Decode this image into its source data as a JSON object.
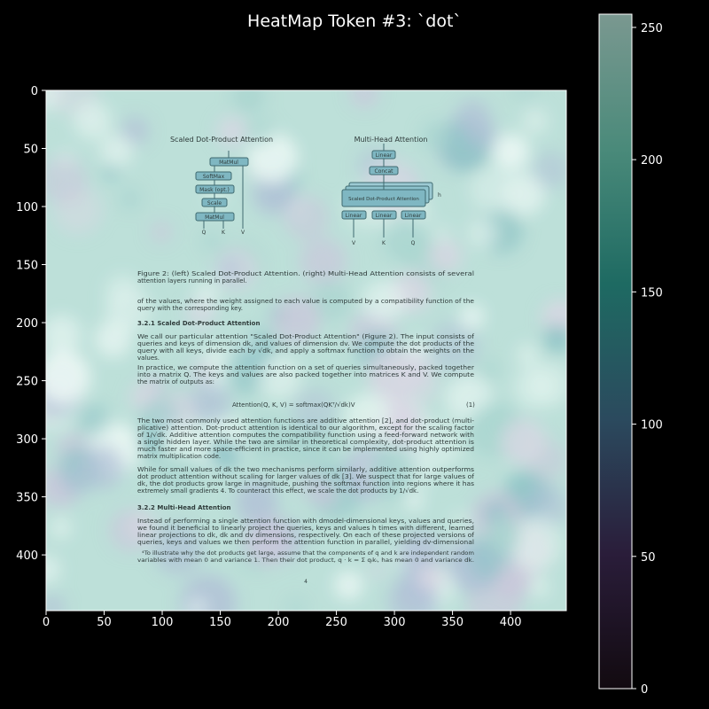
{
  "chart_data": {
    "type": "heatmap",
    "title": "HeatMap Token #3: `dot`",
    "x_ticks": [
      0,
      50,
      100,
      150,
      200,
      250,
      300,
      350,
      400
    ],
    "y_ticks": [
      0,
      50,
      100,
      150,
      200,
      250,
      300,
      350,
      400
    ],
    "xlim": [
      0,
      448
    ],
    "ylim": [
      448,
      0
    ],
    "colorbar": {
      "ticks": [
        0,
        50,
        100,
        150,
        200,
        250
      ],
      "range": [
        0,
        255
      ],
      "colors": [
        "#120a10",
        "#2a1d3a",
        "#2b4a5e",
        "#1e6a62",
        "#4a8a7a",
        "#7a9890"
      ]
    }
  },
  "document": {
    "left_diagram_title": "Scaled Dot-Product Attention",
    "right_diagram_title": "Multi-Head Attention",
    "left_boxes": [
      "MatMul",
      "SoftMax",
      "Mask (opt.)",
      "Scale",
      "MatMul"
    ],
    "left_inputs": [
      "Q",
      "K",
      "V"
    ],
    "right_boxes": [
      "Linear",
      "Concat",
      "Scaled Dot-Product Attention",
      "Linear",
      "Linear",
      "Linear"
    ],
    "right_inputs": [
      "V",
      "K",
      "Q"
    ],
    "h_label": "h",
    "figure_caption": [
      "Figure 2: (left) Scaled Dot-Product Attention. (right) Multi-Head Attention consists of several",
      "attention layers running in parallel."
    ],
    "para_intro": [
      "of the values, where the weight assigned to each value is computed by a compatibility function of the",
      "query with the corresponding key."
    ],
    "section_321": "3.2.1    Scaled Dot-Product Attention",
    "para_321": [
      "We call our particular attention \"Scaled Dot-Product Attention\" (Figure 2). The input consists of",
      "queries and keys of dimension dk, and values of dimension dv. We compute the dot products of the",
      "query with all keys, divide each by √dk, and apply a softmax function to obtain the weights on the",
      "values."
    ],
    "para_practice": [
      "In practice, we compute the attention function on a set of queries simultaneously, packed together",
      "into a matrix Q. The keys and values are also packed together into matrices K and V. We compute",
      "the matrix of outputs as:"
    ],
    "equation": "Attention(Q, K, V) = softmax(QKᵀ/√dk)V",
    "equation_number": "(1)",
    "para_common": [
      "The two most commonly used attention functions are additive attention [2], and dot-product (multi-",
      "plicative) attention. Dot-product attention is identical to our algorithm, except for the scaling factor",
      "of 1/√dk. Additive attention computes the compatibility function using a feed-forward network with",
      "a single hidden layer. While the two are similar in theoretical complexity, dot-product attention is",
      "much faster and more space-efficient in practice, since it can be implemented using highly optimized",
      "matrix multiplication code."
    ],
    "para_small": [
      "While for small values of dk the two mechanisms perform similarly, additive attention outperforms",
      "dot product attention without scaling for larger values of dk [3]. We suspect that for large values of",
      "dk, the dot products grow large in magnitude, pushing the softmax function into regions where it has",
      "extremely small gradients 4. To counteract this effect, we scale the dot products by 1/√dk."
    ],
    "section_322": "3.2.2    Multi-Head Attention",
    "para_322": [
      "Instead of performing a single attention function with dmodel-dimensional keys, values and queries,",
      "we found it beneficial to linearly project the queries, keys and values h times with different, learned",
      "linear projections to dk, dk and dv dimensions, respectively. On each of these projected versions of",
      "queries, keys and values we then perform the attention function in parallel, yielding dv-dimensional"
    ],
    "footnote": [
      "⁴To illustrate why the dot products get large, assume that the components of q and k are independent random",
      "variables with mean 0 and variance 1. Then their dot product, q · k = Σ qᵢkᵢ, has mean 0 and variance dk."
    ],
    "page_number": "4"
  }
}
